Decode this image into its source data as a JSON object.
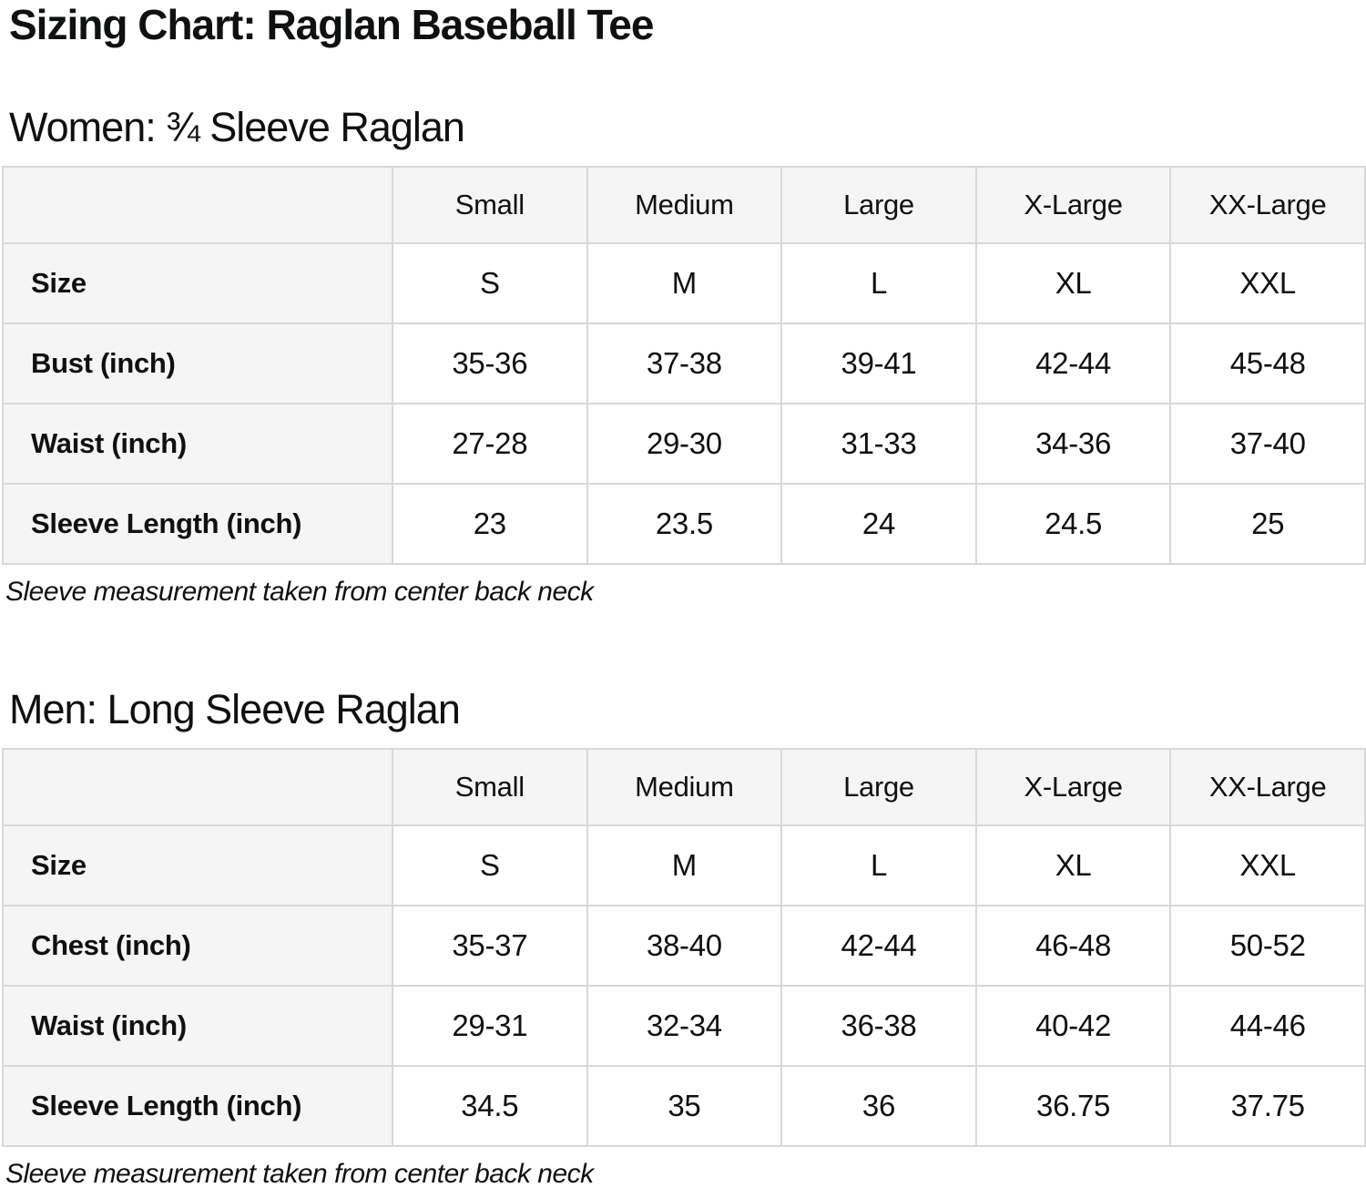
{
  "title": "Sizing Chart: Raglan Baseball Tee",
  "colors": {
    "header_cell_bg": "#f5f5f5",
    "table_border": "#d8d8d8",
    "text": "#0f1111",
    "page_bg": "#ffffff"
  },
  "sections": [
    {
      "heading": "Women: ¾ Sleeve Raglan",
      "columns": [
        "",
        "Small",
        "Medium",
        "Large",
        "X-Large",
        "XX-Large"
      ],
      "rows": [
        {
          "label": "Size",
          "values": [
            "S",
            "M",
            "L",
            "XL",
            "XXL"
          ]
        },
        {
          "label": "Bust (inch)",
          "values": [
            "35-36",
            "37-38",
            "39-41",
            "42-44",
            "45-48"
          ]
        },
        {
          "label": "Waist (inch)",
          "values": [
            "27-28",
            "29-30",
            "31-33",
            "34-36",
            "37-40"
          ]
        },
        {
          "label": "Sleeve Length (inch)",
          "values": [
            "23",
            "23.5",
            "24",
            "24.5",
            "25"
          ]
        }
      ],
      "note": "Sleeve measurement taken from center back neck"
    },
    {
      "heading": "Men: Long Sleeve Raglan",
      "columns": [
        "",
        "Small",
        "Medium",
        "Large",
        "X-Large",
        "XX-Large"
      ],
      "rows": [
        {
          "label": "Size",
          "values": [
            "S",
            "M",
            "L",
            "XL",
            "XXL"
          ]
        },
        {
          "label": "Chest (inch)",
          "values": [
            "35-37",
            "38-40",
            "42-44",
            "46-48",
            "50-52"
          ]
        },
        {
          "label": "Waist (inch)",
          "values": [
            "29-31",
            "32-34",
            "36-38",
            "40-42",
            "44-46"
          ]
        },
        {
          "label": "Sleeve Length (inch)",
          "values": [
            "34.5",
            "35",
            "36",
            "36.75",
            "37.75"
          ]
        }
      ],
      "note": "Sleeve measurement taken from center back neck"
    }
  ]
}
